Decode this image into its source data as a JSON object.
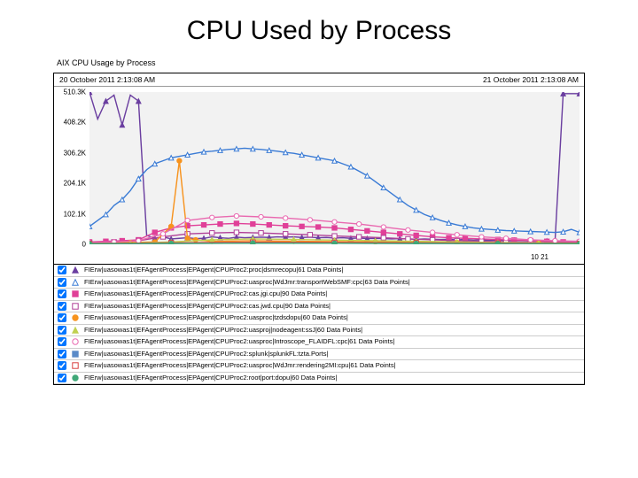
{
  "title": "CPU Used by Process",
  "subtitle": "AIX CPU Usage by Process",
  "timeHeader": {
    "start": "20 October 2011 2:13:08 AM",
    "end": "21 October 2011 2:13:08 AM"
  },
  "plot": {
    "bg": "#f2f2f2",
    "ylim": [
      0,
      510300
    ],
    "xlim": [
      0,
      60
    ],
    "yticks": [
      {
        "v": 0,
        "label": "0"
      },
      {
        "v": 102100,
        "label": "102.1K"
      },
      {
        "v": 204100,
        "label": "204.1K"
      },
      {
        "v": 306200,
        "label": "306.2K"
      },
      {
        "v": 408200,
        "label": "408.2K"
      },
      {
        "v": 510300,
        "label": "510.3K"
      }
    ],
    "xaxis_label": "10 21",
    "label_fontsize": 8
  },
  "series": [
    {
      "id": "s0",
      "color": "#6b3fa0",
      "marker": "triangle",
      "filled": true,
      "legend": "FIErw|uasowas1t|EFAgentProcess|EPAgent|CPUProc2:proc|dsmrecopu|61 Data Points|",
      "data": [
        [
          0,
          510000
        ],
        [
          1,
          420000
        ],
        [
          2,
          480000
        ],
        [
          3,
          500000
        ],
        [
          4,
          400000
        ],
        [
          5,
          500000
        ],
        [
          6,
          480000
        ],
        [
          7,
          30000
        ],
        [
          8,
          20000
        ],
        [
          9,
          25000
        ],
        [
          10,
          18000
        ],
        [
          11,
          20000
        ],
        [
          12,
          22000
        ],
        [
          13,
          19000
        ],
        [
          14,
          20000
        ],
        [
          15,
          25000
        ],
        [
          16,
          22000
        ],
        [
          17,
          20000
        ],
        [
          18,
          24000
        ],
        [
          19,
          22000
        ],
        [
          20,
          23000
        ],
        [
          21,
          24000
        ],
        [
          22,
          23000
        ],
        [
          23,
          25000
        ],
        [
          24,
          24000
        ],
        [
          25,
          25000
        ],
        [
          26,
          23000
        ],
        [
          27,
          24000
        ],
        [
          28,
          22000
        ],
        [
          29,
          23000
        ],
        [
          30,
          21000
        ],
        [
          31,
          22000
        ],
        [
          32,
          20000
        ],
        [
          33,
          21000
        ],
        [
          34,
          19000
        ],
        [
          35,
          20000
        ],
        [
          36,
          19000
        ],
        [
          37,
          18000
        ],
        [
          38,
          19000
        ],
        [
          39,
          18000
        ],
        [
          40,
          17000
        ],
        [
          41,
          18000
        ],
        [
          42,
          17000
        ],
        [
          43,
          16000
        ],
        [
          44,
          17000
        ],
        [
          45,
          15000
        ],
        [
          46,
          16000
        ],
        [
          47,
          14000
        ],
        [
          48,
          15000
        ],
        [
          49,
          13000
        ],
        [
          50,
          14000
        ],
        [
          51,
          12000
        ],
        [
          52,
          13000
        ],
        [
          53,
          12000
        ],
        [
          54,
          11000
        ],
        [
          55,
          12000
        ],
        [
          56,
          11000
        ],
        [
          57,
          10000
        ],
        [
          58,
          505000
        ],
        [
          59,
          505000
        ],
        [
          60,
          505000
        ]
      ]
    },
    {
      "id": "s1",
      "color": "#3a7bd5",
      "marker": "triangle",
      "filled": false,
      "legend": "FIErw|uasowas1t|EFAgentProcess|EPAgent|CPUProc2:uasproc|WdJmr:transportWebSMF:cpc|63 Data Points|",
      "data": [
        [
          0,
          60000
        ],
        [
          1,
          80000
        ],
        [
          2,
          100000
        ],
        [
          3,
          130000
        ],
        [
          4,
          150000
        ],
        [
          5,
          180000
        ],
        [
          6,
          220000
        ],
        [
          7,
          250000
        ],
        [
          8,
          270000
        ],
        [
          9,
          280000
        ],
        [
          10,
          290000
        ],
        [
          11,
          295000
        ],
        [
          12,
          300000
        ],
        [
          13,
          305000
        ],
        [
          14,
          310000
        ],
        [
          15,
          312000
        ],
        [
          16,
          315000
        ],
        [
          17,
          318000
        ],
        [
          18,
          320000
        ],
        [
          19,
          322000
        ],
        [
          20,
          320000
        ],
        [
          21,
          318000
        ],
        [
          22,
          315000
        ],
        [
          23,
          312000
        ],
        [
          24,
          308000
        ],
        [
          25,
          305000
        ],
        [
          26,
          300000
        ],
        [
          27,
          295000
        ],
        [
          28,
          290000
        ],
        [
          29,
          285000
        ],
        [
          30,
          280000
        ],
        [
          31,
          270000
        ],
        [
          32,
          260000
        ],
        [
          33,
          245000
        ],
        [
          34,
          230000
        ],
        [
          35,
          210000
        ],
        [
          36,
          190000
        ],
        [
          37,
          170000
        ],
        [
          38,
          150000
        ],
        [
          39,
          130000
        ],
        [
          40,
          115000
        ],
        [
          41,
          100000
        ],
        [
          42,
          90000
        ],
        [
          43,
          80000
        ],
        [
          44,
          72000
        ],
        [
          45,
          65000
        ],
        [
          46,
          60000
        ],
        [
          47,
          55000
        ],
        [
          48,
          52000
        ],
        [
          49,
          50000
        ],
        [
          50,
          48000
        ],
        [
          51,
          46000
        ],
        [
          52,
          45000
        ],
        [
          53,
          44000
        ],
        [
          54,
          43000
        ],
        [
          55,
          42000
        ],
        [
          56,
          41000
        ],
        [
          57,
          40000
        ],
        [
          58,
          42000
        ],
        [
          59,
          50000
        ],
        [
          60,
          40000
        ]
      ]
    },
    {
      "id": "s2",
      "color": "#e04098",
      "marker": "square",
      "filled": true,
      "legend": "FIErw|uasowas1t|EFAgentProcess|EPAgent|CPUProc2:cas.jgi.cpu|90 Data Points|",
      "data": [
        [
          0,
          8000
        ],
        [
          2,
          10000
        ],
        [
          4,
          12000
        ],
        [
          6,
          15000
        ],
        [
          8,
          40000
        ],
        [
          10,
          55000
        ],
        [
          12,
          62000
        ],
        [
          14,
          65000
        ],
        [
          16,
          68000
        ],
        [
          18,
          70000
        ],
        [
          20,
          68000
        ],
        [
          22,
          65000
        ],
        [
          24,
          62000
        ],
        [
          26,
          60000
        ],
        [
          28,
          58000
        ],
        [
          30,
          55000
        ],
        [
          32,
          50000
        ],
        [
          34,
          45000
        ],
        [
          36,
          40000
        ],
        [
          38,
          35000
        ],
        [
          40,
          30000
        ],
        [
          42,
          25000
        ],
        [
          44,
          22000
        ],
        [
          46,
          20000
        ],
        [
          48,
          18000
        ],
        [
          50,
          16000
        ],
        [
          52,
          14000
        ],
        [
          54,
          12000
        ],
        [
          56,
          10000
        ],
        [
          58,
          8000
        ],
        [
          60,
          7000
        ]
      ]
    },
    {
      "id": "s3",
      "color": "#b04098",
      "marker": "square",
      "filled": false,
      "legend": "FIErw|uasowas1t|EFAgentProcess|EPAgent|CPUProc2:cas.jwd.cpu|90 Data Points|",
      "data": [
        [
          0,
          5000
        ],
        [
          3,
          8000
        ],
        [
          6,
          12000
        ],
        [
          9,
          25000
        ],
        [
          12,
          35000
        ],
        [
          15,
          38000
        ],
        [
          18,
          40000
        ],
        [
          21,
          38000
        ],
        [
          24,
          35000
        ],
        [
          27,
          32000
        ],
        [
          30,
          28000
        ],
        [
          33,
          25000
        ],
        [
          36,
          22000
        ],
        [
          39,
          18000
        ],
        [
          42,
          15000
        ],
        [
          45,
          12000
        ],
        [
          48,
          10000
        ],
        [
          51,
          8000
        ],
        [
          54,
          7000
        ],
        [
          57,
          6000
        ],
        [
          60,
          5000
        ]
      ]
    },
    {
      "id": "s4",
      "color": "#f7931e",
      "marker": "circle",
      "filled": true,
      "legend": "FIErw|uasowas1t|EFAgentProcess|EPAgent|CPUProc2:uasproc|tzdsdopu|60 Data Points|",
      "data": [
        [
          0,
          4000
        ],
        [
          5,
          6000
        ],
        [
          8,
          8000
        ],
        [
          10,
          60000
        ],
        [
          11,
          280000
        ],
        [
          12,
          20000
        ],
        [
          13,
          15000
        ],
        [
          15,
          10000
        ],
        [
          20,
          12000
        ],
        [
          25,
          10000
        ],
        [
          30,
          9000
        ],
        [
          35,
          8000
        ],
        [
          40,
          7000
        ],
        [
          45,
          6000
        ],
        [
          50,
          5000
        ],
        [
          55,
          4000
        ],
        [
          60,
          4000
        ]
      ]
    },
    {
      "id": "s5",
      "color": "#c0d050",
      "marker": "triangle",
      "filled": true,
      "legend": "FIErw|uasowas1t|EFAgentProcess|EPAgent|CPUProc2:uasproj|nodeagent:ssJ|60 Data Points|",
      "data": [
        [
          0,
          3000
        ],
        [
          5,
          4000
        ],
        [
          10,
          8000
        ],
        [
          15,
          15000
        ],
        [
          20,
          18000
        ],
        [
          25,
          16000
        ],
        [
          30,
          14000
        ],
        [
          35,
          12000
        ],
        [
          40,
          10000
        ],
        [
          45,
          8000
        ],
        [
          50,
          6000
        ],
        [
          55,
          5000
        ],
        [
          60,
          4000
        ]
      ]
    },
    {
      "id": "s6",
      "color": "#e969b0",
      "marker": "circle",
      "filled": false,
      "legend": "FIErw|uasowas1t|EFAgentProcess|EPAgent|CPUProc2:uasproc|Introscope_FLAIDFL:cpc|61 Data Points|",
      "data": [
        [
          0,
          6000
        ],
        [
          3,
          8000
        ],
        [
          6,
          12000
        ],
        [
          9,
          35000
        ],
        [
          12,
          80000
        ],
        [
          15,
          90000
        ],
        [
          18,
          95000
        ],
        [
          21,
          92000
        ],
        [
          24,
          88000
        ],
        [
          27,
          82000
        ],
        [
          30,
          75000
        ],
        [
          33,
          68000
        ],
        [
          36,
          58000
        ],
        [
          39,
          48000
        ],
        [
          42,
          40000
        ],
        [
          45,
          32000
        ],
        [
          48,
          25000
        ],
        [
          51,
          20000
        ],
        [
          54,
          15000
        ],
        [
          57,
          12000
        ],
        [
          60,
          10000
        ]
      ]
    },
    {
      "id": "s7",
      "color": "#5a8ac8",
      "marker": "square",
      "filled": true,
      "legend": "FIErw|uasowas1t|EFAgentProcess|EPAgent|CPUProc2:splunk|splunkFL:tzta.Ports|",
      "data": [
        [
          0,
          2000
        ],
        [
          10,
          3000
        ],
        [
          20,
          4000
        ],
        [
          30,
          3500
        ],
        [
          40,
          3000
        ],
        [
          50,
          2500
        ],
        [
          60,
          2000
        ]
      ]
    },
    {
      "id": "s8",
      "color": "#d84040",
      "marker": "square",
      "filled": false,
      "legend": "FIErw|uasowas1t|EFAgentProcess|EPAgent|CPUProc2:uasproc|WdJmr:rendering2MI:cpu|61 Data Points|",
      "data": [
        [
          0,
          3000
        ],
        [
          10,
          5000
        ],
        [
          20,
          7000
        ],
        [
          30,
          6000
        ],
        [
          40,
          5000
        ],
        [
          50,
          4000
        ],
        [
          60,
          3000
        ]
      ]
    },
    {
      "id": "s9",
      "color": "#40a878",
      "marker": "circle",
      "filled": true,
      "legend": "FIErw|uasowas1t|EFAgentProcess|EPAgent|CPUProc2:root|port:dopu|60 Data Points|",
      "data": [
        [
          0,
          2000
        ],
        [
          10,
          3000
        ],
        [
          20,
          4000
        ],
        [
          30,
          3500
        ],
        [
          40,
          3000
        ],
        [
          50,
          2500
        ],
        [
          60,
          2000
        ]
      ]
    }
  ]
}
